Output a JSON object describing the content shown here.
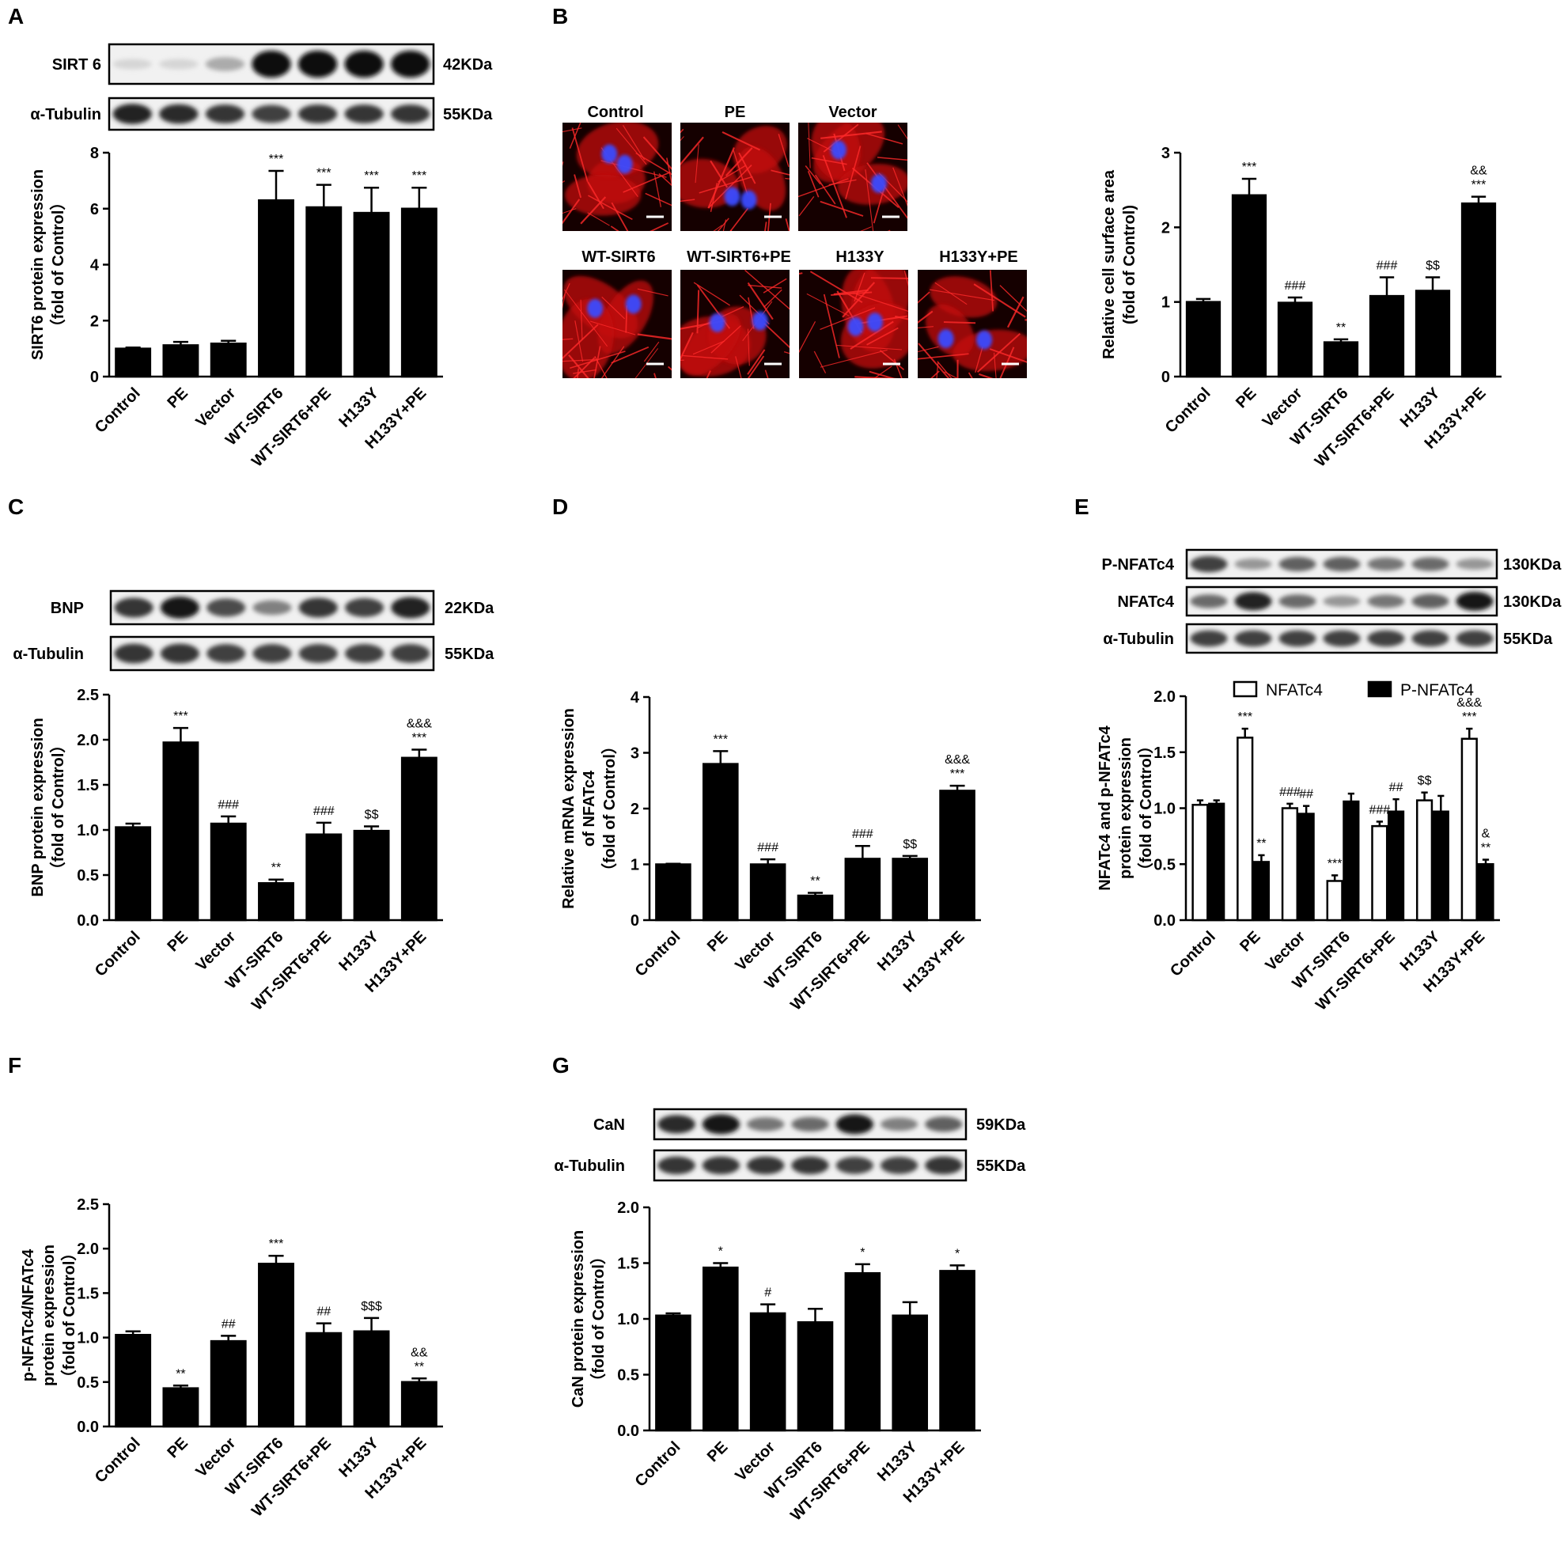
{
  "panels": {
    "A": {
      "letter": "A"
    },
    "B": {
      "letter": "B"
    },
    "C": {
      "letter": "C"
    },
    "D": {
      "letter": "D"
    },
    "E": {
      "letter": "E"
    },
    "F": {
      "letter": "F"
    },
    "G": {
      "letter": "G"
    }
  },
  "blots": {
    "A": [
      {
        "label": "SIRT 6",
        "size": "42KDa",
        "bands": [
          0.05,
          0.05,
          0.25,
          1,
          1,
          1,
          1
        ]
      },
      {
        "label": "α-Tubulin",
        "size": "55KDa",
        "bands": [
          0.9,
          0.85,
          0.8,
          0.75,
          0.8,
          0.8,
          0.8
        ]
      }
    ],
    "C": [
      {
        "label": "BNP",
        "size": "22KDa",
        "bands": [
          0.8,
          0.95,
          0.7,
          0.45,
          0.8,
          0.75,
          0.9
        ]
      },
      {
        "label": "α-Tubulin",
        "size": "55KDa",
        "bands": [
          0.8,
          0.8,
          0.75,
          0.75,
          0.75,
          0.75,
          0.75
        ]
      }
    ],
    "E": [
      {
        "label": "P-NFATc4",
        "size": "130KDa",
        "bands": [
          0.75,
          0.35,
          0.6,
          0.6,
          0.5,
          0.55,
          0.35
        ]
      },
      {
        "label": "NFATc4",
        "size": "130KDa",
        "bands": [
          0.55,
          0.9,
          0.55,
          0.35,
          0.5,
          0.6,
          0.95
        ]
      },
      {
        "label": "α-Tubulin",
        "size": "55KDa",
        "bands": [
          0.75,
          0.75,
          0.75,
          0.75,
          0.75,
          0.75,
          0.75
        ]
      }
    ],
    "G": [
      {
        "label": "CaN",
        "size": "59KDa",
        "bands": [
          0.85,
          0.95,
          0.5,
          0.55,
          0.95,
          0.45,
          0.6
        ]
      },
      {
        "label": "α-Tubulin",
        "size": "55KDa",
        "bands": [
          0.8,
          0.8,
          0.8,
          0.8,
          0.75,
          0.75,
          0.8
        ]
      }
    ]
  },
  "images": {
    "row1": [
      "Control",
      "PE",
      "Vector"
    ],
    "row2": [
      "WT-SIRT6",
      "WT-SIRT6+PE",
      "H133Y",
      "H133Y+PE"
    ]
  },
  "chart_data": [
    {
      "panel": "A",
      "type": "bar",
      "categories": [
        "Control",
        "PE",
        "Vector",
        "WT-SIRT6",
        "WT-SIRT6+PE",
        "H133Y",
        "H133Y+PE"
      ],
      "values": [
        1.0,
        1.12,
        1.18,
        6.3,
        6.05,
        5.85,
        6.0
      ],
      "errors": [
        0.04,
        0.12,
        0.1,
        1.05,
        0.8,
        0.9,
        0.75
      ],
      "annotations": [
        [],
        [],
        [],
        [
          "***"
        ],
        [
          "***"
        ],
        [
          "***"
        ],
        [
          "***"
        ]
      ],
      "ylabel": [
        "SIRT6 protein expression",
        "（fold of Control）"
      ],
      "ylim": [
        0,
        8
      ],
      "ticks": [
        0,
        2,
        4,
        6,
        8
      ]
    },
    {
      "panel": "B",
      "type": "bar",
      "categories": [
        "Control",
        "PE",
        "Vector",
        "WT-SIRT6",
        "WT-SIRT6+PE",
        "H133Y",
        "H133Y+PE"
      ],
      "values": [
        1.0,
        2.43,
        0.99,
        0.46,
        1.08,
        1.15,
        2.32
      ],
      "errors": [
        0.04,
        0.22,
        0.07,
        0.04,
        0.25,
        0.18,
        0.09
      ],
      "annotations": [
        [],
        [
          "***"
        ],
        [
          "###"
        ],
        [
          "**"
        ],
        [
          "###"
        ],
        [
          "$$"
        ],
        [
          "***",
          "&&"
        ]
      ],
      "ylabel": [
        "Relative cell surface area",
        "(fold of Control)"
      ],
      "ylim": [
        0,
        3
      ],
      "ticks": [
        0,
        1,
        2,
        3
      ]
    },
    {
      "panel": "C",
      "type": "bar",
      "categories": [
        "Control",
        "PE",
        "Vector",
        "WT-SIRT6",
        "WT-SIRT6+PE",
        "H133Y",
        "H133Y+PE"
      ],
      "values": [
        1.03,
        1.97,
        1.07,
        0.41,
        0.95,
        0.99,
        1.8
      ],
      "errors": [
        0.04,
        0.16,
        0.08,
        0.04,
        0.13,
        0.05,
        0.09
      ],
      "annotations": [
        [],
        [
          "***"
        ],
        [
          "###"
        ],
        [
          "**"
        ],
        [
          "###"
        ],
        [
          "$$"
        ],
        [
          "***",
          "&&&"
        ]
      ],
      "ylabel": [
        "BNP protein expression",
        "（fold of Control）"
      ],
      "ylim": [
        0,
        2.5
      ],
      "ticks": [
        "0.0",
        "0.5",
        "1.0",
        "1.5",
        "2.0",
        "2.5"
      ]
    },
    {
      "panel": "D",
      "type": "bar",
      "categories": [
        "Control",
        "PE",
        "Vector",
        "WT-SIRT6",
        "WT-SIRT6+PE",
        "H133Y",
        "H133Y+PE"
      ],
      "values": [
        1.0,
        2.8,
        1.0,
        0.44,
        1.1,
        1.1,
        2.32
      ],
      "errors": [
        0.01,
        0.23,
        0.09,
        0.05,
        0.23,
        0.05,
        0.09
      ],
      "annotations": [
        [],
        [
          "***"
        ],
        [
          "###"
        ],
        [
          "**"
        ],
        [
          "###"
        ],
        [
          "$$"
        ],
        [
          "***",
          "&&&"
        ]
      ],
      "ylabel": [
        "Relative mRNA expression",
        "of NFATc4",
        "（fold of Control）"
      ],
      "ylim": [
        0,
        4
      ],
      "ticks": [
        0,
        1,
        2,
        3,
        4
      ]
    },
    {
      "panel": "E",
      "type": "bar",
      "categories": [
        "Control",
        "PE",
        "Vector",
        "WT-SIRT6",
        "WT-SIRT6+PE",
        "H133Y",
        "H133Y+PE"
      ],
      "series": [
        {
          "name": "NFATc4",
          "fill": "#ffffff",
          "values": [
            1.03,
            1.63,
            1.0,
            0.35,
            0.84,
            1.07,
            1.62
          ],
          "errors": [
            0.04,
            0.08,
            0.04,
            0.05,
            0.04,
            0.07,
            0.09
          ],
          "annotations": [
            [],
            [
              "***"
            ],
            [
              "###"
            ],
            [
              "***"
            ],
            [
              "###"
            ],
            [
              "$$"
            ],
            [
              "***",
              "&&&"
            ]
          ]
        },
        {
          "name": "P-NFATc4",
          "fill": "#000000",
          "values": [
            1.04,
            0.52,
            0.95,
            1.06,
            0.97,
            0.97,
            0.5
          ],
          "errors": [
            0.03,
            0.06,
            0.07,
            0.07,
            0.11,
            0.14,
            0.04
          ],
          "annotations": [
            [],
            [
              "**"
            ],
            [
              "##"
            ],
            [],
            [
              "##"
            ],
            [],
            [
              "**",
              "&"
            ]
          ]
        }
      ],
      "ylabel": [
        "NFATc4 and p-NFATc4",
        "protein expression",
        "（fold of Control）"
      ],
      "ylim": [
        0,
        2
      ],
      "ticks": [
        "0.0",
        "0.5",
        "1.0",
        "1.5",
        "2.0"
      ],
      "legend": "top"
    },
    {
      "panel": "F",
      "type": "bar",
      "categories": [
        "Control",
        "PE",
        "Vector",
        "WT-SIRT6",
        "WT-SIRT6+PE",
        "H133Y",
        "H133Y+PE"
      ],
      "values": [
        1.03,
        0.43,
        0.96,
        1.83,
        1.05,
        1.07,
        0.5
      ],
      "errors": [
        0.04,
        0.03,
        0.06,
        0.09,
        0.11,
        0.15,
        0.04
      ],
      "annotations": [
        [],
        [
          "**"
        ],
        [
          "##"
        ],
        [
          "***"
        ],
        [
          "##"
        ],
        [
          "$$$"
        ],
        [
          "**",
          "&&"
        ]
      ],
      "ylabel": [
        "p-NFATc4/NFATc4",
        "protein expression",
        "（fold of Control）"
      ],
      "ylim": [
        0,
        2.5
      ],
      "ticks": [
        "0.0",
        "0.5",
        "1.0",
        "1.5",
        "2.0",
        "2.5"
      ]
    },
    {
      "panel": "G",
      "type": "bar",
      "categories": [
        "Control",
        "PE",
        "Vector",
        "WT-SIRT6",
        "WT-SIRT6+PE",
        "H133Y",
        "H133Y+PE"
      ],
      "values": [
        1.03,
        1.46,
        1.05,
        0.97,
        1.41,
        1.03,
        1.43
      ],
      "errors": [
        0.02,
        0.04,
        0.08,
        0.12,
        0.08,
        0.12,
        0.05
      ],
      "annotations": [
        [],
        [
          "*"
        ],
        [
          "#"
        ],
        [],
        [
          "*"
        ],
        [],
        [
          "*"
        ]
      ],
      "ylabel": [
        "CaN protein expression",
        "（fold of Control）"
      ],
      "ylim": [
        0,
        2
      ],
      "ticks": [
        "0.0",
        "0.5",
        "1.0",
        "1.5",
        "2.0"
      ]
    }
  ]
}
